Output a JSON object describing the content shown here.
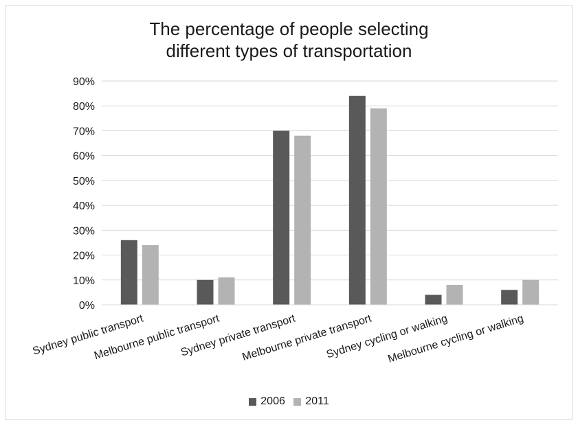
{
  "chart_data": {
    "type": "bar",
    "title": "The percentage of people selecting different types of transportation",
    "title_lines": [
      "The percentage of people selecting",
      "different types of transportation"
    ],
    "categories": [
      "Sydney public transport",
      "Melbourne public transport",
      "Sydney private transport",
      "Melbourne private transport",
      "Sydney cycling or walking",
      "Melbourne cycling or walking"
    ],
    "series": [
      {
        "name": "2006",
        "values": [
          26,
          10,
          70,
          84,
          4,
          6
        ],
        "color": "#595959"
      },
      {
        "name": "2011",
        "values": [
          24,
          11,
          68,
          79,
          8,
          10
        ],
        "color": "#b3b3b3"
      }
    ],
    "y_ticks": [
      "0%",
      "10%",
      "20%",
      "30%",
      "40%",
      "50%",
      "60%",
      "70%",
      "80%",
      "90%"
    ],
    "ylim": [
      0,
      90
    ],
    "y_unit": "%",
    "xlabel": "",
    "ylabel": "",
    "grid": true,
    "legend_position": "bottom"
  }
}
